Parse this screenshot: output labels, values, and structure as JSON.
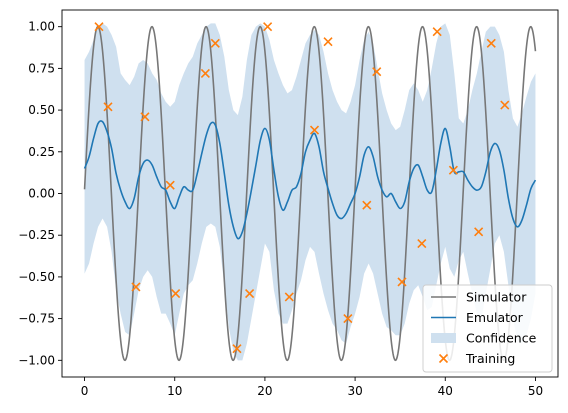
{
  "chart_data": {
    "type": "line",
    "title": "",
    "xlabel": "",
    "ylabel": "",
    "xlim": [
      -2.5,
      52.5
    ],
    "ylim": [
      -1.1,
      1.1
    ],
    "xticks": [
      0,
      10,
      20,
      30,
      40,
      50
    ],
    "yticks": [
      -1.0,
      -0.75,
      -0.5,
      -0.25,
      0.0,
      0.25,
      0.5,
      0.75,
      1.0
    ],
    "xtick_labels": [
      "0",
      "10",
      "20",
      "30",
      "40",
      "50"
    ],
    "ytick_labels": [
      "−1.00",
      "−0.75",
      "−0.50",
      "−0.25",
      "0.00",
      "0.25",
      "0.50",
      "0.75",
      "1.00"
    ],
    "grid": false,
    "legend": {
      "placement": "bottom-right",
      "entries": [
        {
          "label": "Simulator",
          "kind": "line",
          "color": "#777777"
        },
        {
          "label": "Emulator",
          "kind": "line",
          "color": "#1f77b4"
        },
        {
          "label": "Confidence",
          "kind": "patch",
          "color": "#cfe0ef"
        },
        {
          "label": "Training",
          "kind": "marker",
          "color": "#ff7f0e"
        }
      ]
    },
    "simulator": {
      "name": "Simulator",
      "color": "#777777",
      "function": "sin",
      "x_range": [
        0,
        50
      ],
      "omega": 1.0472,
      "phase": 0.025
    },
    "emulator": {
      "name": "Emulator",
      "color": "#1f77b4",
      "x": [
        0,
        0.5,
        1,
        1.5,
        2,
        2.5,
        3,
        3.5,
        4,
        4.5,
        5,
        5.5,
        6,
        6.5,
        7,
        7.5,
        8,
        8.5,
        9,
        9.5,
        10,
        10.5,
        11,
        11.5,
        12,
        12.5,
        13,
        13.5,
        14,
        14.5,
        15,
        15.5,
        16,
        16.5,
        17,
        17.5,
        18,
        18.5,
        19,
        19.5,
        20,
        20.5,
        21,
        21.5,
        22,
        22.5,
        23,
        23.5,
        24,
        24.5,
        25,
        25.5,
        26,
        26.5,
        27,
        27.5,
        28,
        28.5,
        29,
        29.5,
        30,
        30.5,
        31,
        31.5,
        32,
        32.5,
        33,
        33.5,
        34,
        34.5,
        35,
        35.5,
        36,
        36.5,
        37,
        37.5,
        38,
        38.5,
        39,
        39.5,
        40,
        40.5,
        41,
        41.5,
        42,
        42.5,
        43,
        43.5,
        44,
        44.5,
        45,
        45.5,
        46,
        46.5,
        47,
        47.5,
        48,
        48.5,
        49,
        49.5,
        50
      ],
      "values": [
        0.15,
        0.22,
        0.33,
        0.42,
        0.43,
        0.37,
        0.27,
        0.12,
        0.02,
        -0.05,
        -0.09,
        -0.03,
        0.1,
        0.18,
        0.2,
        0.17,
        0.1,
        0.04,
        0.02,
        -0.05,
        -0.09,
        -0.02,
        0.04,
        0.02,
        0.02,
        0.12,
        0.24,
        0.35,
        0.42,
        0.41,
        0.3,
        0.12,
        -0.07,
        -0.2,
        -0.27,
        -0.23,
        -0.12,
        0.02,
        0.17,
        0.32,
        0.39,
        0.32,
        0.14,
        -0.02,
        -0.1,
        -0.05,
        0.02,
        0.04,
        0.12,
        0.25,
        0.32,
        0.36,
        0.28,
        0.13,
        0.03,
        -0.06,
        -0.13,
        -0.15,
        -0.12,
        -0.06,
        0.0,
        0.1,
        0.23,
        0.28,
        0.22,
        0.1,
        0.02,
        -0.02,
        0.0,
        -0.05,
        -0.09,
        -0.05,
        0.07,
        0.15,
        0.17,
        0.1,
        0.02,
        0.01,
        0.14,
        0.3,
        0.39,
        0.28,
        0.13,
        0.13,
        0.13,
        0.08,
        0.04,
        0.02,
        0.04,
        0.13,
        0.25,
        0.3,
        0.26,
        0.14,
        -0.03,
        -0.15,
        -0.2,
        -0.16,
        -0.07,
        0.03,
        0.08
      ]
    },
    "confidence": {
      "name": "Confidence",
      "color": "#cfe0ef",
      "upper": [
        0.8,
        0.85,
        0.92,
        1.0,
        1.02,
        1.0,
        0.95,
        0.88,
        0.72,
        0.68,
        0.65,
        0.7,
        0.78,
        0.8,
        0.78,
        0.72,
        0.68,
        0.6,
        0.55,
        0.52,
        0.55,
        0.65,
        0.72,
        0.78,
        0.82,
        0.9,
        0.95,
        1.0,
        1.02,
        1.02,
        0.95,
        0.82,
        0.62,
        0.5,
        0.47,
        0.58,
        0.8,
        0.95,
        1.0,
        1.02,
        1.0,
        0.92,
        0.8,
        0.72,
        0.65,
        0.6,
        0.62,
        0.7,
        0.8,
        0.9,
        0.95,
        0.98,
        0.95,
        0.85,
        0.72,
        0.62,
        0.55,
        0.5,
        0.48,
        0.55,
        0.65,
        0.8,
        0.92,
        0.97,
        0.9,
        0.75,
        0.6,
        0.5,
        0.42,
        0.38,
        0.4,
        0.5,
        0.62,
        0.66,
        0.62,
        0.55,
        0.62,
        0.75,
        0.9,
        1.0,
        1.02,
        0.95,
        0.72,
        0.45,
        0.42,
        0.5,
        0.62,
        0.72,
        0.85,
        0.97,
        1.0,
        1.0,
        0.95,
        0.85,
        0.62,
        0.45,
        0.4,
        0.48,
        0.58,
        0.67,
        0.72
      ],
      "lower": [
        -0.48,
        -0.42,
        -0.3,
        -0.2,
        -0.15,
        -0.2,
        -0.35,
        -0.58,
        -0.72,
        -0.83,
        -0.85,
        -0.72,
        -0.58,
        -0.5,
        -0.46,
        -0.5,
        -0.62,
        -0.72,
        -0.72,
        -0.78,
        -0.85,
        -0.72,
        -0.6,
        -0.55,
        -0.52,
        -0.42,
        -0.3,
        -0.2,
        -0.18,
        -0.2,
        -0.32,
        -0.55,
        -0.8,
        -0.95,
        -1.0,
        -1.0,
        -0.9,
        -0.75,
        -0.6,
        -0.45,
        -0.3,
        -0.35,
        -0.58,
        -0.72,
        -0.78,
        -0.78,
        -0.7,
        -0.6,
        -0.52,
        -0.4,
        -0.32,
        -0.35,
        -0.48,
        -0.6,
        -0.7,
        -0.78,
        -0.82,
        -0.88,
        -0.9,
        -0.8,
        -0.72,
        -0.62,
        -0.48,
        -0.42,
        -0.48,
        -0.6,
        -0.72,
        -0.8,
        -0.82,
        -0.85,
        -0.85,
        -0.78,
        -0.66,
        -0.58,
        -0.55,
        -0.62,
        -0.7,
        -0.68,
        -0.55,
        -0.42,
        -0.32,
        -0.45,
        -0.5,
        -0.4,
        -0.35,
        -0.48,
        -0.6,
        -0.72,
        -0.75,
        -0.6,
        -0.45,
        -0.3,
        -0.25,
        -0.35,
        -0.55,
        -0.75,
        -0.88,
        -0.9,
        -0.85,
        -0.75,
        -0.6
      ]
    },
    "training": {
      "name": "Training",
      "color": "#ff7f0e",
      "x": [
        1.6,
        2.6,
        5.7,
        6.7,
        9.5,
        10.1,
        13.4,
        14.5,
        16.9,
        18.3,
        20.3,
        22.7,
        25.5,
        27.0,
        29.2,
        31.3,
        32.4,
        35.2,
        37.4,
        39.1,
        40.9,
        43.7,
        45.1,
        46.6
      ],
      "y": [
        1.0,
        0.52,
        -0.56,
        0.46,
        0.05,
        -0.6,
        0.72,
        0.9,
        -0.93,
        -0.6,
        1.0,
        -0.62,
        0.38,
        0.91,
        -0.75,
        -0.07,
        0.73,
        -0.53,
        -0.3,
        0.97,
        0.14,
        -0.23,
        0.9,
        0.53
      ]
    }
  }
}
